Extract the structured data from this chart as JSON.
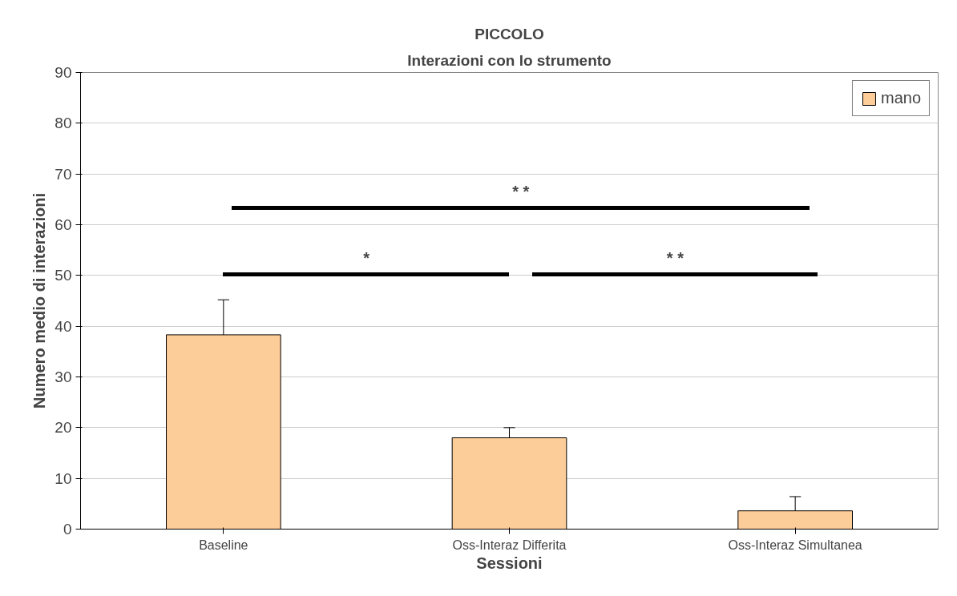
{
  "chart_data": {
    "type": "bar",
    "title": "PICCOLO",
    "subtitle": "Interazioni con lo strumento",
    "xlabel": "Sessioni",
    "ylabel": "Numero medio di interazioni",
    "categories": [
      "Baseline",
      "Oss-Interaz Differita",
      "Oss-Interaz Simultanea"
    ],
    "series": [
      {
        "name": "mano",
        "color": "#fccc99",
        "values": [
          38.3,
          18.0,
          3.6
        ],
        "errors": [
          [
            38.3,
            45.2
          ],
          [
            18.0,
            20.0
          ],
          [
            3.6,
            6.4
          ]
        ]
      }
    ],
    "ylim": [
      0,
      90
    ],
    "yticks": [
      0,
      10,
      20,
      30,
      40,
      50,
      60,
      70,
      80,
      90
    ],
    "grid": "y",
    "legend": "top right",
    "annotations": [
      "* *",
      "*",
      "* *"
    ]
  }
}
